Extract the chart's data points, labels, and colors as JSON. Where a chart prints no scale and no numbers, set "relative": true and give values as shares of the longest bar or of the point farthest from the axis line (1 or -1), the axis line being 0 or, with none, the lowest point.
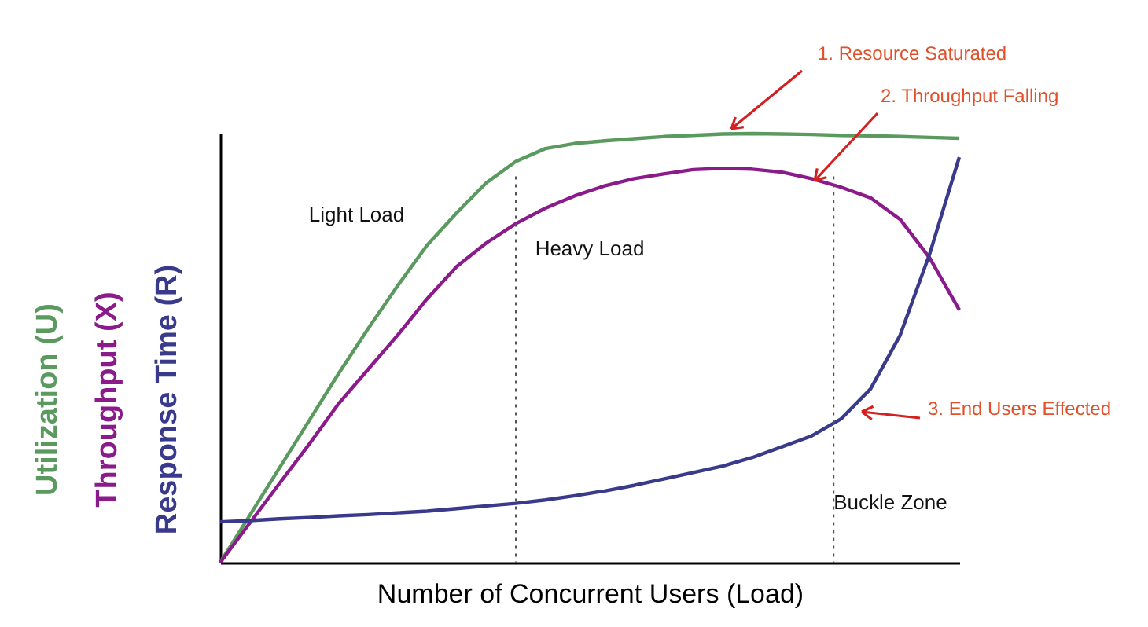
{
  "chart_data": {
    "type": "line",
    "relative": true,
    "xlabel": "Number of  Concurrent Users (Load)",
    "tick_labels": false,
    "legend": false,
    "marker": "none",
    "line_style": "solid",
    "categories": [
      null,
      null,
      null,
      null,
      null,
      null,
      null,
      null,
      null,
      null,
      null,
      null,
      null,
      null,
      null,
      null,
      null,
      null,
      null,
      null,
      null,
      null,
      null,
      null,
      null,
      null
    ],
    "series": [
      {
        "name": "Utilization (U)",
        "color": "#5a9a5e",
        "values": [
          0,
          0.11,
          0.22,
          0.33,
          0.44,
          0.545,
          0.645,
          0.74,
          0.815,
          0.885,
          0.935,
          0.965,
          0.977,
          0.983,
          0.988,
          0.993,
          0.996,
          0.999,
          1.0,
          0.999,
          0.998,
          0.996,
          0.995,
          0.993,
          0.991,
          0.989
        ]
      },
      {
        "name": "Throughput (X)",
        "color": "#8b1a8b",
        "values": [
          0,
          0.092,
          0.184,
          0.275,
          0.37,
          0.45,
          0.53,
          0.615,
          0.69,
          0.745,
          0.79,
          0.826,
          0.855,
          0.878,
          0.895,
          0.906,
          0.916,
          0.919,
          0.917,
          0.91,
          0.895,
          0.875,
          0.85,
          0.8,
          0.71,
          0.589
        ]
      },
      {
        "name": "Response Time (R)",
        "color": "#3a3a8c",
        "values": [
          0.095,
          0.098,
          0.102,
          0.105,
          0.109,
          0.112,
          0.116,
          0.12,
          0.126,
          0.132,
          0.138,
          0.146,
          0.156,
          0.167,
          0.18,
          0.195,
          0.21,
          0.225,
          0.245,
          0.27,
          0.295,
          0.335,
          0.405,
          0.53,
          0.72,
          0.945
        ]
      }
    ],
    "ref_lines": [
      {
        "axis": "x",
        "line_style": "dotted",
        "color": "#555555"
      },
      {
        "axis": "x",
        "line_style": "dotted",
        "color": "#555555"
      }
    ],
    "annotations": [
      "1. Resource Saturated",
      "2. Throughput Falling",
      "3. End Users Effected",
      "Light Load",
      "Heavy Load",
      "Buckle Zone"
    ]
  }
}
